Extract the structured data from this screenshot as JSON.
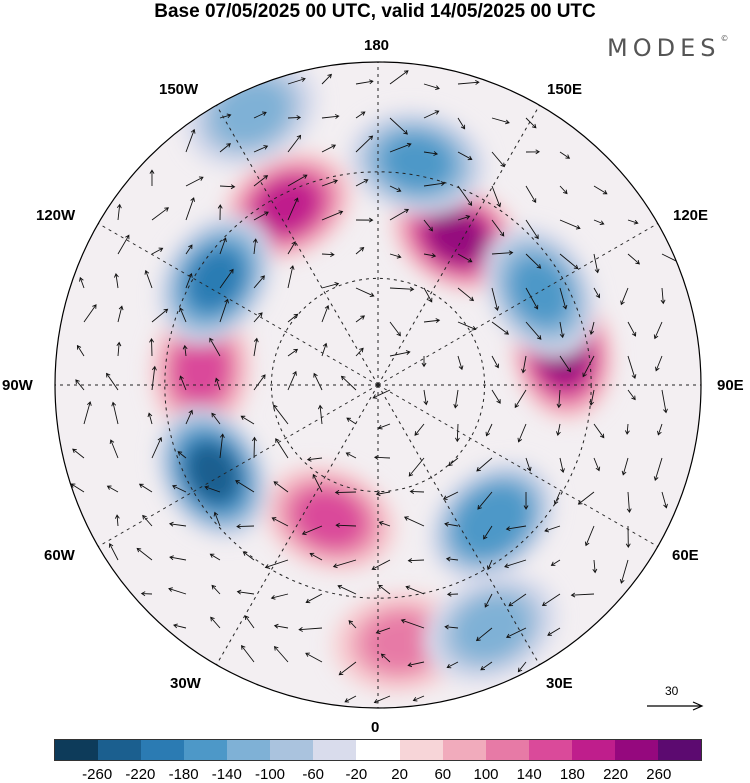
{
  "title": "Base 07/05/2025 00 UTC, valid 14/05/2025 00 UTC",
  "brand": "MODES",
  "brand_mark": "©",
  "longitude_labels": {
    "top": "180",
    "upper_left": "150W",
    "upper_right": "150E",
    "mid_upper_left": "120W",
    "mid_upper_right": "120E",
    "left": "90W",
    "right": "90E",
    "mid_lower_left": "60W",
    "mid_lower_right": "60E",
    "lower_left": "30W",
    "lower_right": "30E",
    "bottom": "0"
  },
  "reference_vector": {
    "label": "30"
  },
  "colorbar": {
    "colors": [
      "#0d3b5a",
      "#1b5f8f",
      "#2b7bb3",
      "#4d98c8",
      "#7fb1d6",
      "#aac3de",
      "#d9dcec",
      "#ffffff",
      "#f7d5d8",
      "#f1abbc",
      "#e77aa6",
      "#da4a9a",
      "#bf1e8c",
      "#95087e",
      "#5c0a70"
    ],
    "ticks": [
      "-260",
      "-220",
      "-180",
      "-140",
      "-100",
      "-60",
      "-20",
      "20",
      "60",
      "100",
      "140",
      "180",
      "220",
      "260"
    ]
  },
  "anomaly_centers": [
    {
      "name": "positive anomaly 150W",
      "lon": -153,
      "dist": 0.62,
      "value": 200,
      "sign": "+"
    },
    {
      "name": "positive anomaly 150E",
      "lon": 152,
      "dist": 0.52,
      "value": 240,
      "sign": "+"
    },
    {
      "name": "positive anomaly 90E",
      "lon": 100,
      "dist": 0.58,
      "value": 230,
      "sign": "+"
    },
    {
      "name": "positive anomaly 90W",
      "lon": -95,
      "dist": 0.55,
      "value": 160,
      "sign": "+"
    },
    {
      "name": "positive anomaly 15W",
      "lon": -20,
      "dist": 0.44,
      "value": 140,
      "sign": "+"
    },
    {
      "name": "positive anomaly 5E",
      "lon": 5,
      "dist": 0.8,
      "value": 120,
      "sign": "+"
    },
    {
      "name": "negative anomaly 120W",
      "lon": -123,
      "dist": 0.6,
      "value": -200,
      "sign": "-"
    },
    {
      "name": "negative anomaly 60W",
      "lon": -62,
      "dist": 0.58,
      "value": -250,
      "sign": "-"
    },
    {
      "name": "negative anomaly 160E",
      "lon": 170,
      "dist": 0.7,
      "value": -160,
      "sign": "-"
    },
    {
      "name": "negative anomaly 120E",
      "lon": 120,
      "dist": 0.58,
      "value": -170,
      "sign": "-"
    },
    {
      "name": "negative anomaly 40E",
      "lon": 40,
      "dist": 0.55,
      "value": -180,
      "sign": "-"
    },
    {
      "name": "negative anomaly 25E",
      "lon": 25,
      "dist": 0.83,
      "value": -130,
      "sign": "-"
    },
    {
      "name": "negative anomaly 155W",
      "lon": -155,
      "dist": 0.93,
      "value": -120,
      "sign": "-"
    }
  ]
}
